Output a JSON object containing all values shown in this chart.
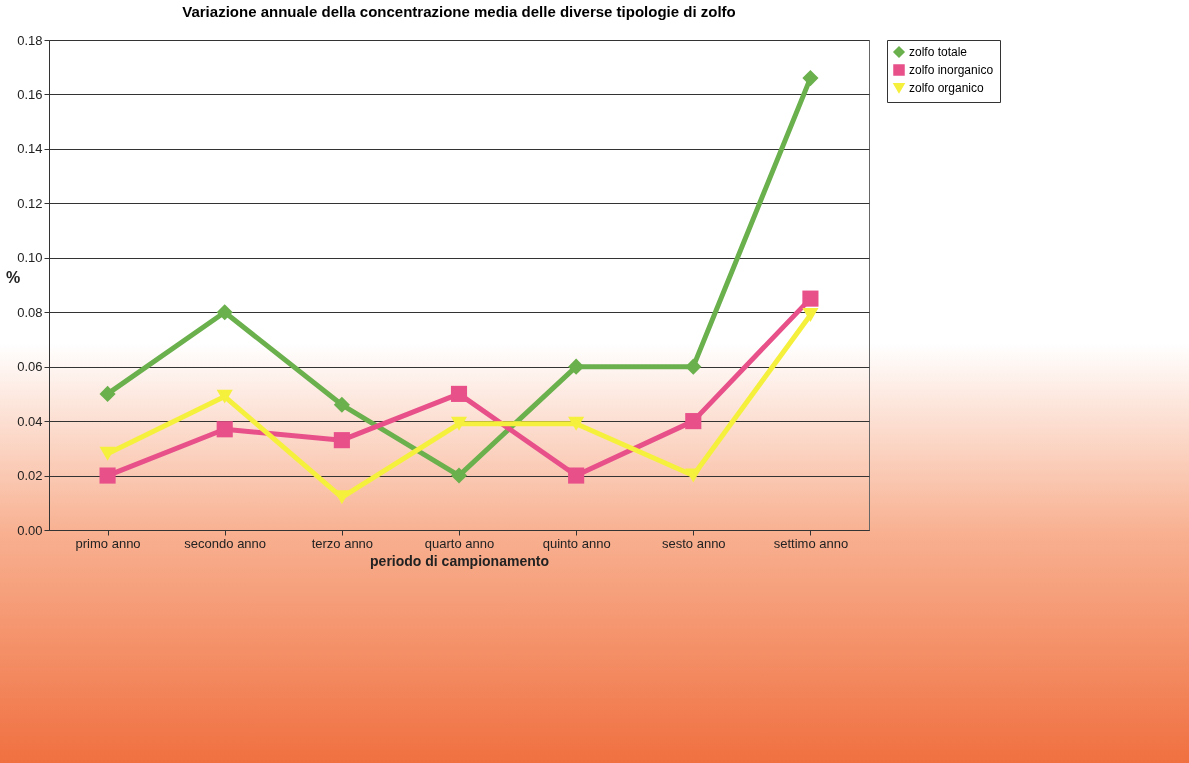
{
  "chart_data": {
    "type": "line",
    "title": "Variazione annuale della concentrazione media delle diverse tipologie di zolfo",
    "xlabel": "periodo di campionamento",
    "ylabel": "%",
    "categories": [
      "primo anno",
      "secondo anno",
      "terzo anno",
      "quarto anno",
      "quinto anno",
      "sesto anno",
      "settimo anno"
    ],
    "series": [
      {
        "name": "zolfo totale",
        "color": "#6ab04c",
        "marker": "diamond",
        "values": [
          0.05,
          0.08,
          0.046,
          0.02,
          0.06,
          0.06,
          0.166
        ]
      },
      {
        "name": "zolfo inorganico",
        "color": "#e8508a",
        "marker": "square",
        "values": [
          0.02,
          0.037,
          0.033,
          0.05,
          0.02,
          0.04,
          0.085
        ]
      },
      {
        "name": "zolfo organico",
        "color": "#f5f03c",
        "marker": "triangle",
        "values": [
          0.028,
          0.049,
          0.012,
          0.039,
          0.039,
          0.02,
          0.079
        ]
      }
    ],
    "ylim": [
      0,
      0.18
    ],
    "yticks": [
      {
        "value": 0,
        "label": "0.00"
      },
      {
        "value": 0.02,
        "label": "0.02"
      },
      {
        "value": 0.04,
        "label": "0.04"
      },
      {
        "value": 0.06,
        "label": "0.06"
      },
      {
        "value": 0.08,
        "label": "0.08"
      },
      {
        "value": 0.1,
        "label": "0.10"
      },
      {
        "value": 0.12,
        "label": "0.12"
      },
      {
        "value": 0.14,
        "label": "0.14"
      },
      {
        "value": 0.16,
        "label": "0.16"
      },
      {
        "value": 0.18,
        "label": "0.18"
      }
    ],
    "grid": "y",
    "legend": "right"
  }
}
